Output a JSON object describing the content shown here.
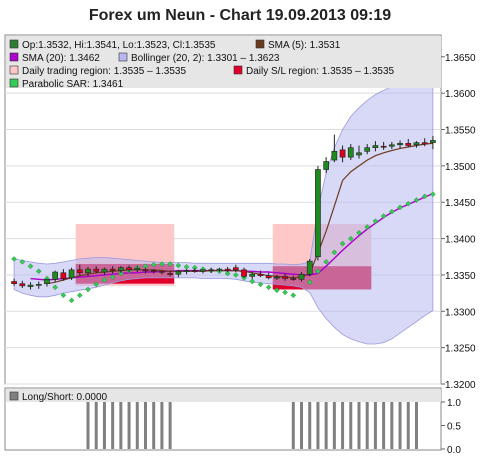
{
  "title": "Forex um Neun - Chart 19.09.2013 09:19",
  "legend": {
    "ohlc": "Op:1.3532, Hi:1.3541, Lo:1.3523, Cl:1.3535",
    "sma5": "SMA (5): 1.3531",
    "trading_region": "Daily trading region: 1.3535 – 1.3535",
    "sl_region": "Daily S/L region: 1.3535 – 1.3535",
    "sma20": "SMA (20): 1.3462",
    "bollinger": "Bollinger (20, 2): 1.3301 – 1.3623",
    "psar": "Parabolic SAR: 1.3461",
    "long_short": "Long/Short: 0.0000"
  },
  "colors": {
    "ohlc": "#2e7d32",
    "sma5": "#6b3a1e",
    "sma20": "#aa00cc",
    "bollinger": "#b8b8f0",
    "trading_region": "#ffc8c8",
    "sl_region": "#e0002a",
    "psar": "#33cc55",
    "bull": "#1f8a1f",
    "bear": "#e0001a"
  },
  "chart_data": [
    {
      "type": "candlestick",
      "title": "Forex um Neun - Chart 19.09.2013 09:19",
      "ylim": [
        1.32,
        1.368
      ],
      "yticks": [
        "1.3650",
        "1.3600",
        "1.3550",
        "1.3500",
        "1.3450",
        "1.3400",
        "1.3350",
        "1.3300",
        "1.3250",
        "1.3200"
      ],
      "candles": [
        {
          "o": 1.3341,
          "h": 1.3345,
          "l": 1.3335,
          "c": 1.3338
        },
        {
          "o": 1.3338,
          "h": 1.3342,
          "l": 1.3332,
          "c": 1.3335
        },
        {
          "o": 1.3334,
          "h": 1.334,
          "l": 1.333,
          "c": 1.3336
        },
        {
          "o": 1.3336,
          "h": 1.3341,
          "l": 1.3331,
          "c": 1.3337
        },
        {
          "o": 1.3338,
          "h": 1.3345,
          "l": 1.3334,
          "c": 1.3344
        },
        {
          "o": 1.3344,
          "h": 1.3356,
          "l": 1.334,
          "c": 1.3354
        },
        {
          "o": 1.3353,
          "h": 1.3358,
          "l": 1.3342,
          "c": 1.3345
        },
        {
          "o": 1.3346,
          "h": 1.336,
          "l": 1.3343,
          "c": 1.3357
        },
        {
          "o": 1.3357,
          "h": 1.3364,
          "l": 1.3349,
          "c": 1.3353
        },
        {
          "o": 1.3353,
          "h": 1.3361,
          "l": 1.3348,
          "c": 1.3358
        },
        {
          "o": 1.3358,
          "h": 1.3362,
          "l": 1.3352,
          "c": 1.3355
        },
        {
          "o": 1.3354,
          "h": 1.336,
          "l": 1.335,
          "c": 1.3358
        },
        {
          "o": 1.3358,
          "h": 1.3362,
          "l": 1.3352,
          "c": 1.3356
        },
        {
          "o": 1.3356,
          "h": 1.3362,
          "l": 1.3353,
          "c": 1.336
        },
        {
          "o": 1.336,
          "h": 1.3363,
          "l": 1.3354,
          "c": 1.3357
        },
        {
          "o": 1.3357,
          "h": 1.3362,
          "l": 1.3354,
          "c": 1.3359
        },
        {
          "o": 1.3357,
          "h": 1.336,
          "l": 1.3352,
          "c": 1.3356
        },
        {
          "o": 1.3356,
          "h": 1.3358,
          "l": 1.3352,
          "c": 1.3355
        },
        {
          "o": 1.3355,
          "h": 1.3357,
          "l": 1.3351,
          "c": 1.3354
        },
        {
          "o": 1.3352,
          "h": 1.3356,
          "l": 1.3348,
          "c": 1.3351
        },
        {
          "o": 1.3351,
          "h": 1.3357,
          "l": 1.3347,
          "c": 1.3355
        },
        {
          "o": 1.3355,
          "h": 1.3358,
          "l": 1.3351,
          "c": 1.3356
        },
        {
          "o": 1.3356,
          "h": 1.3359,
          "l": 1.3353,
          "c": 1.3355
        },
        {
          "o": 1.3355,
          "h": 1.3358,
          "l": 1.3352,
          "c": 1.3357
        },
        {
          "o": 1.3357,
          "h": 1.336,
          "l": 1.3353,
          "c": 1.3356
        },
        {
          "o": 1.3357,
          "h": 1.336,
          "l": 1.3354,
          "c": 1.3358
        },
        {
          "o": 1.3358,
          "h": 1.3361,
          "l": 1.3354,
          "c": 1.3356
        },
        {
          "o": 1.336,
          "h": 1.3364,
          "l": 1.3354,
          "c": 1.3357
        },
        {
          "o": 1.3357,
          "h": 1.336,
          "l": 1.3346,
          "c": 1.3348
        },
        {
          "o": 1.3348,
          "h": 1.3354,
          "l": 1.3344,
          "c": 1.3351
        },
        {
          "o": 1.3351,
          "h": 1.3356,
          "l": 1.3347,
          "c": 1.3349
        },
        {
          "o": 1.3349,
          "h": 1.3353,
          "l": 1.3344,
          "c": 1.3346
        },
        {
          "o": 1.3346,
          "h": 1.335,
          "l": 1.3343,
          "c": 1.3347
        },
        {
          "o": 1.3348,
          "h": 1.3352,
          "l": 1.3342,
          "c": 1.3345
        },
        {
          "o": 1.3345,
          "h": 1.3349,
          "l": 1.3342,
          "c": 1.3344
        },
        {
          "o": 1.3344,
          "h": 1.3354,
          "l": 1.3341,
          "c": 1.3351
        },
        {
          "o": 1.3351,
          "h": 1.3372,
          "l": 1.3348,
          "c": 1.3369
        },
        {
          "o": 1.3375,
          "h": 1.35,
          "l": 1.337,
          "c": 1.3495
        },
        {
          "o": 1.3495,
          "h": 1.3512,
          "l": 1.349,
          "c": 1.3506
        },
        {
          "o": 1.3508,
          "h": 1.3543,
          "l": 1.3505,
          "c": 1.352
        },
        {
          "o": 1.3522,
          "h": 1.3528,
          "l": 1.3505,
          "c": 1.3512
        },
        {
          "o": 1.3512,
          "h": 1.353,
          "l": 1.3508,
          "c": 1.3525
        },
        {
          "o": 1.3515,
          "h": 1.3528,
          "l": 1.351,
          "c": 1.3518
        },
        {
          "o": 1.352,
          "h": 1.353,
          "l": 1.3516,
          "c": 1.3525
        },
        {
          "o": 1.3525,
          "h": 1.3534,
          "l": 1.352,
          "c": 1.3528
        },
        {
          "o": 1.3527,
          "h": 1.3533,
          "l": 1.3522,
          "c": 1.3526
        },
        {
          "o": 1.3527,
          "h": 1.3533,
          "l": 1.3523,
          "c": 1.3529
        },
        {
          "o": 1.3529,
          "h": 1.3535,
          "l": 1.3524,
          "c": 1.3531
        },
        {
          "o": 1.3531,
          "h": 1.3537,
          "l": 1.3526,
          "c": 1.3528
        },
        {
          "o": 1.3529,
          "h": 1.3534,
          "l": 1.3525,
          "c": 1.3532
        },
        {
          "o": 1.3532,
          "h": 1.3538,
          "l": 1.3527,
          "c": 1.353
        },
        {
          "o": 1.3532,
          "h": 1.3541,
          "l": 1.3523,
          "c": 1.3535
        }
      ],
      "trading_regions": [
        {
          "start": 8,
          "end": 19,
          "low": 1.3335,
          "high": 1.342
        },
        {
          "start": 32,
          "end": 43,
          "low": 1.3335,
          "high": 1.342
        }
      ],
      "sl_regions": [
        {
          "start": 8,
          "end": 19,
          "low": 1.3338,
          "high": 1.3365
        },
        {
          "start": 32,
          "end": 43,
          "low": 1.333,
          "high": 1.3362
        }
      ],
      "bollinger": {
        "upper": [
          1.3372,
          1.337,
          1.3368,
          1.3366,
          1.3365,
          1.3366,
          1.3368,
          1.337,
          1.3372,
          1.3373,
          1.3374,
          1.3374,
          1.3373,
          1.3372,
          1.3371,
          1.337,
          1.3369,
          1.3368,
          1.3367,
          1.3367,
          1.3367,
          1.3367,
          1.3366,
          1.3366,
          1.3366,
          1.3366,
          1.3366,
          1.3366,
          1.3366,
          1.3366,
          1.3366,
          1.3366,
          1.3365,
          1.3365,
          1.3364,
          1.3365,
          1.3368,
          1.344,
          1.349,
          1.3525,
          1.355,
          1.3568,
          1.358,
          1.359,
          1.3598,
          1.3604,
          1.3609,
          1.3613,
          1.3616,
          1.3619,
          1.3621,
          1.3623
        ],
        "lower": [
          1.333,
          1.3325,
          1.3322,
          1.332,
          1.332,
          1.3322,
          1.3325,
          1.3327,
          1.3329,
          1.3331,
          1.3333,
          1.3336,
          1.3339,
          1.3342,
          1.3344,
          1.3345,
          1.3346,
          1.3346,
          1.3346,
          1.3346,
          1.3346,
          1.3346,
          1.3346,
          1.3345,
          1.3345,
          1.3345,
          1.3345,
          1.3344,
          1.3342,
          1.334,
          1.3339,
          1.3338,
          1.3337,
          1.3336,
          1.3335,
          1.3333,
          1.3326,
          1.3305,
          1.329,
          1.3278,
          1.3268,
          1.3262,
          1.3258,
          1.3255,
          1.3255,
          1.3257,
          1.3262,
          1.327,
          1.3278,
          1.3286,
          1.3294,
          1.3301
        ]
      },
      "sma5": [
        null,
        null,
        null,
        null,
        1.3338,
        1.334,
        1.3343,
        1.3346,
        1.3349,
        1.3351,
        1.3353,
        1.3354,
        1.3355,
        1.3356,
        1.3357,
        1.3357,
        1.3357,
        1.3357,
        1.3356,
        1.3355,
        1.3355,
        1.3355,
        1.3355,
        1.3355,
        1.3356,
        1.3356,
        1.3356,
        1.3356,
        1.3355,
        1.3353,
        1.3351,
        1.3349,
        1.3348,
        1.3347,
        1.3346,
        1.3347,
        1.3352,
        1.338,
        1.341,
        1.3445,
        1.348,
        1.3492,
        1.35,
        1.3508,
        1.3514,
        1.3518,
        1.3521,
        1.3524,
        1.3526,
        1.3528,
        1.353,
        1.3531
      ],
      "sma20": [
        null,
        null,
        1.3345,
        1.3344,
        1.3343,
        1.3344,
        1.3345,
        1.3346,
        1.3347,
        1.3348,
        1.3349,
        1.335,
        1.3351,
        1.3352,
        1.3353,
        1.3353,
        1.3354,
        1.3354,
        1.3355,
        1.3355,
        1.3356,
        1.3356,
        1.3356,
        1.3356,
        1.3356,
        1.3356,
        1.3356,
        1.3356,
        1.3355,
        1.3355,
        1.3354,
        1.3354,
        1.3353,
        1.3352,
        1.3351,
        1.335,
        1.335,
        1.3352,
        1.3362,
        1.3373,
        1.3384,
        1.3394,
        1.3404,
        1.3413,
        1.3421,
        1.3429,
        1.3436,
        1.3442,
        1.3447,
        1.3452,
        1.3457,
        1.3462
      ],
      "psar": [
        1.3372,
        1.3368,
        1.3362,
        1.3355,
        1.3345,
        1.3333,
        1.3322,
        1.3315,
        1.3322,
        1.333,
        1.3337,
        1.3343,
        1.3347,
        1.3352,
        1.3356,
        1.336,
        1.3362,
        1.3364,
        1.3365,
        1.3365,
        1.3363,
        1.3361,
        1.336,
        1.3358,
        1.3356,
        1.3355,
        1.3352,
        1.335,
        1.3346,
        1.3341,
        1.3337,
        1.3333,
        1.3329,
        1.3326,
        1.3322,
        null,
        1.334,
        1.3355,
        1.3368,
        1.3381,
        1.3393,
        1.34,
        1.3408,
        1.3416,
        1.3424,
        1.3431,
        1.3437,
        1.3443,
        1.3448,
        1.3453,
        1.3458,
        1.3461
      ]
    },
    {
      "type": "bar",
      "name": "Long/Short",
      "ylim": [
        0,
        1.0
      ],
      "yticks": [
        "1.0",
        "0.5",
        "0.0"
      ],
      "values": [
        0,
        0,
        0,
        0,
        0,
        0,
        0,
        0,
        0,
        1,
        1,
        1,
        1,
        1,
        1,
        1,
        1,
        1,
        1,
        1,
        0,
        0,
        0,
        0,
        0,
        0,
        0,
        0,
        0,
        0,
        0,
        0,
        0,
        0,
        1,
        1,
        1,
        1,
        1,
        1,
        1,
        1,
        1,
        1,
        1,
        1,
        1,
        1,
        1,
        1,
        0,
        0
      ]
    }
  ]
}
